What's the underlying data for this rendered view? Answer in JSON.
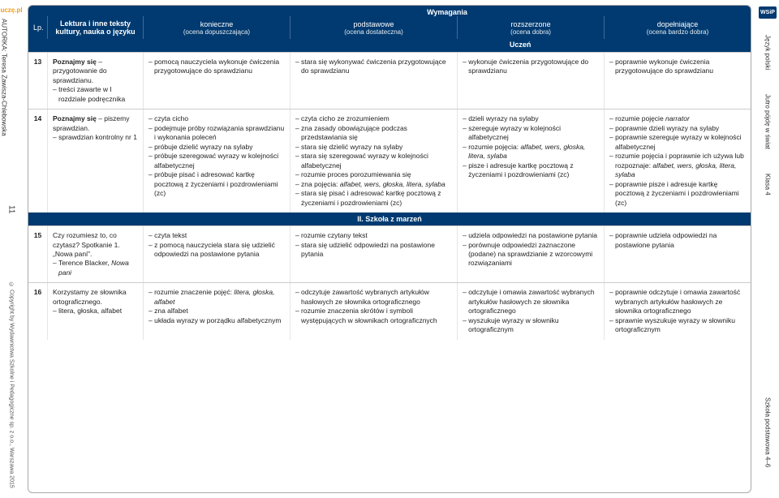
{
  "left": {
    "logo": "uczę.pl",
    "author": "AUTORKA: Teresa Zawisza-Chlebowska",
    "page": "11",
    "copyright": "© Copyright by Wydawnictwa Szkolne i Pedagogiczne sp. z o.o., Warszawa 2015"
  },
  "right": {
    "wsip": "WSiP",
    "subject": "Język polski",
    "book": "Jutro pójdę w świat",
    "grade": "Klasa 4",
    "school": "Szkoła podstawowa 4–6"
  },
  "header": {
    "lp": "Lp.",
    "lektura": "Lektura i inne teksty kultury, nauka o języku",
    "wymagania": "Wymagania",
    "konieczne": "konieczne",
    "konieczne_sub": "(ocena dopuszczająca)",
    "podstawowe": "podstawowe",
    "podstawowe_sub": "(ocena dostateczna)",
    "rozszerzone": "rozszerzone",
    "rozszerzone_sub": "(ocena dobra)",
    "dopelniajace": "dopełniające",
    "dopelniajace_sub": "(ocena bardzo dobra)",
    "uczen": "Uczeń"
  },
  "section": {
    "title": "II. Szkoła z marzeń"
  },
  "rows": {
    "r13": {
      "lp": "13",
      "lek1": "Poznajmy się",
      "lek2": " – przygotowanie do sprawdzianu.",
      "lek3": "treści zawarte w I rozdziale podręcznika",
      "k": "pomocą nauczyciela wykonuje ćwiczenia przygotowujące do sprawdzianu",
      "p": "stara się wykonywać ćwiczenia przygotowujące do sprawdzianu",
      "r": "wykonuje ćwiczenia przygotowujące do sprawdzianu",
      "d": "poprawnie wykonuje ćwiczenia przygotowujące do sprawdzianu"
    },
    "r14": {
      "lp": "14",
      "lek1": "Poznajmy się",
      "lek2": " – piszemy sprawdzian.",
      "lek3": "sprawdzian kontrolny nr 1",
      "k1": "czyta cicho",
      "k2": "podejmuje próby rozwiązania sprawdzianu i wykonania poleceń",
      "k3": "próbuje dzielić wyrazy na sylaby",
      "k4": "próbuje szeregować wyrazy w kolejności alfabetycznej",
      "k5": "próbuje pisać i adresować kartkę pocztową z życzeniami i pozdrowieniami (zc)",
      "p1": "czyta cicho ze zrozumieniem",
      "p2": "zna zasady obowiązujące podczas przedstawiania się",
      "p3": "stara się dzielić wyrazy na sylaby",
      "p4": "stara się szeregować wyrazy w kolejności alfabetycznej",
      "p5": "rozumie proces porozumiewania się",
      "p6a": "zna pojęcia: ",
      "p6b": "alfabet, wers, głoska, litera, sylaba",
      "p7": "stara się pisać i adresować kartkę pocztową z życzeniami i pozdrowieniami (zc)",
      "r1": "dzieli wyrazy na sylaby",
      "r2": "szereguje wyrazy w kolejności alfabetycznej",
      "r3a": "rozumie pojęcia: ",
      "r3b": "alfabet, wers, głoska, litera, sylaba",
      "r4": "pisze i adresuje kartkę pocztową z życzeniami i pozdrowieniami (zc)",
      "d1a": "rozumie pojęcie ",
      "d1b": "narrator",
      "d2": "poprawnie dzieli wyrazy na sylaby",
      "d3": "poprawnie szereguje wyrazy w kolejności alfabetycznej",
      "d4a": "rozumie pojęcia i poprawnie ich używa lub rozpoznaje: ",
      "d4b": "alfabet, wers, głoska, litera, sylaba",
      "d5": "poprawnie pisze i adresuje kartkę pocztową z życzeniami i pozdrowieniami (zc)"
    },
    "r15": {
      "lp": "15",
      "lek1": "Czy rozumiesz to, co czytasz? Spotkanie 1. „Nowa pani\".",
      "lek2a": "Terence Blacker, ",
      "lek2b": "Nowa pani",
      "k1": "czyta tekst",
      "k2": "z pomocą nauczyciela stara się udzielić odpowiedzi na postawione pytania",
      "p1": "rozumie czytany tekst",
      "p2": "stara się udzielić odpowiedzi na postawione pytania",
      "r1": "udziela odpowiedzi na postawione pytania",
      "r2": "porównuje odpowiedzi zaznaczone (podane) na sprawdzianie z wzorcowymi rozwiązaniami",
      "d1": "poprawnie udziela odpowiedzi na postawione pytania"
    },
    "r16": {
      "lp": "16",
      "lek1": "Korzystamy ze słownika ortograficznego.",
      "lek2": "litera, głoska, alfabet",
      "k1a": "rozumie znaczenie pojęć: ",
      "k1b": "litera, głoska, alfabet",
      "k2": "zna alfabet",
      "k3": "układa wyrazy w porządku alfabetycznym",
      "p1": "odczytuje zawartość wybranych artykułów hasłowych ze słownika ortograficznego",
      "p2": "rozumie znaczenia skrótów i symboli występujących w słownikach ortograficznych",
      "r1": "odczytuje i omawia zawartość wybranych artykułów hasłowych ze słownika ortograficznego",
      "r2": "wyszukuje wyrazy w słowniku ortograficznym",
      "d1": "poprawnie odczytuje i omawia zawartość wybranych artykułów hasłowych ze słownika ortograficznego",
      "d2": "sprawnie wyszukuje wyrazy w słowniku ortograficznym"
    }
  }
}
